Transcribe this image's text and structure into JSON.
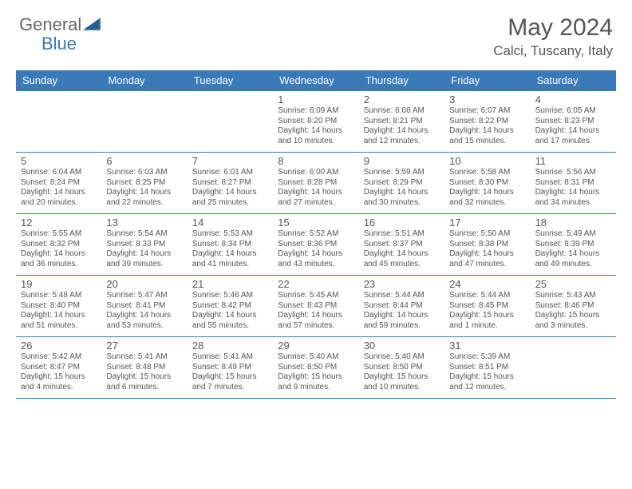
{
  "brand": {
    "general": "General",
    "blue": "Blue"
  },
  "title": {
    "main": "May 2024",
    "sub": "Calci, Tuscany, Italy"
  },
  "colors": {
    "header_bg": "#3a7ab8",
    "text": "#555555",
    "border": "#3a7ab8",
    "page_bg": "#ffffff"
  },
  "days_of_week": [
    "Sunday",
    "Monday",
    "Tuesday",
    "Wednesday",
    "Thursday",
    "Friday",
    "Saturday"
  ],
  "weeks": [
    [
      {
        "day": null
      },
      {
        "day": null
      },
      {
        "day": null
      },
      {
        "day": "1",
        "sunrise": "Sunrise: 6:09 AM",
        "sunset": "Sunset: 8:20 PM",
        "daylight": "Daylight: 14 hours and 10 minutes."
      },
      {
        "day": "2",
        "sunrise": "Sunrise: 6:08 AM",
        "sunset": "Sunset: 8:21 PM",
        "daylight": "Daylight: 14 hours and 12 minutes."
      },
      {
        "day": "3",
        "sunrise": "Sunrise: 6:07 AM",
        "sunset": "Sunset: 8:22 PM",
        "daylight": "Daylight: 14 hours and 15 minutes."
      },
      {
        "day": "4",
        "sunrise": "Sunrise: 6:05 AM",
        "sunset": "Sunset: 8:23 PM",
        "daylight": "Daylight: 14 hours and 17 minutes."
      }
    ],
    [
      {
        "day": "5",
        "sunrise": "Sunrise: 6:04 AM",
        "sunset": "Sunset: 8:24 PM",
        "daylight": "Daylight: 14 hours and 20 minutes."
      },
      {
        "day": "6",
        "sunrise": "Sunrise: 6:03 AM",
        "sunset": "Sunset: 8:25 PM",
        "daylight": "Daylight: 14 hours and 22 minutes."
      },
      {
        "day": "7",
        "sunrise": "Sunrise: 6:01 AM",
        "sunset": "Sunset: 8:27 PM",
        "daylight": "Daylight: 14 hours and 25 minutes."
      },
      {
        "day": "8",
        "sunrise": "Sunrise: 6:00 AM",
        "sunset": "Sunset: 8:28 PM",
        "daylight": "Daylight: 14 hours and 27 minutes."
      },
      {
        "day": "9",
        "sunrise": "Sunrise: 5:59 AM",
        "sunset": "Sunset: 8:29 PM",
        "daylight": "Daylight: 14 hours and 30 minutes."
      },
      {
        "day": "10",
        "sunrise": "Sunrise: 5:58 AM",
        "sunset": "Sunset: 8:30 PM",
        "daylight": "Daylight: 14 hours and 32 minutes."
      },
      {
        "day": "11",
        "sunrise": "Sunrise: 5:56 AM",
        "sunset": "Sunset: 8:31 PM",
        "daylight": "Daylight: 14 hours and 34 minutes."
      }
    ],
    [
      {
        "day": "12",
        "sunrise": "Sunrise: 5:55 AM",
        "sunset": "Sunset: 8:32 PM",
        "daylight": "Daylight: 14 hours and 36 minutes."
      },
      {
        "day": "13",
        "sunrise": "Sunrise: 5:54 AM",
        "sunset": "Sunset: 8:33 PM",
        "daylight": "Daylight: 14 hours and 39 minutes."
      },
      {
        "day": "14",
        "sunrise": "Sunrise: 5:53 AM",
        "sunset": "Sunset: 8:34 PM",
        "daylight": "Daylight: 14 hours and 41 minutes."
      },
      {
        "day": "15",
        "sunrise": "Sunrise: 5:52 AM",
        "sunset": "Sunset: 8:36 PM",
        "daylight": "Daylight: 14 hours and 43 minutes."
      },
      {
        "day": "16",
        "sunrise": "Sunrise: 5:51 AM",
        "sunset": "Sunset: 8:37 PM",
        "daylight": "Daylight: 14 hours and 45 minutes."
      },
      {
        "day": "17",
        "sunrise": "Sunrise: 5:50 AM",
        "sunset": "Sunset: 8:38 PM",
        "daylight": "Daylight: 14 hours and 47 minutes."
      },
      {
        "day": "18",
        "sunrise": "Sunrise: 5:49 AM",
        "sunset": "Sunset: 8:39 PM",
        "daylight": "Daylight: 14 hours and 49 minutes."
      }
    ],
    [
      {
        "day": "19",
        "sunrise": "Sunrise: 5:48 AM",
        "sunset": "Sunset: 8:40 PM",
        "daylight": "Daylight: 14 hours and 51 minutes."
      },
      {
        "day": "20",
        "sunrise": "Sunrise: 5:47 AM",
        "sunset": "Sunset: 8:41 PM",
        "daylight": "Daylight: 14 hours and 53 minutes."
      },
      {
        "day": "21",
        "sunrise": "Sunrise: 5:46 AM",
        "sunset": "Sunset: 8:42 PM",
        "daylight": "Daylight: 14 hours and 55 minutes."
      },
      {
        "day": "22",
        "sunrise": "Sunrise: 5:45 AM",
        "sunset": "Sunset: 8:43 PM",
        "daylight": "Daylight: 14 hours and 57 minutes."
      },
      {
        "day": "23",
        "sunrise": "Sunrise: 5:44 AM",
        "sunset": "Sunset: 8:44 PM",
        "daylight": "Daylight: 14 hours and 59 minutes."
      },
      {
        "day": "24",
        "sunrise": "Sunrise: 5:44 AM",
        "sunset": "Sunset: 8:45 PM",
        "daylight": "Daylight: 15 hours and 1 minute."
      },
      {
        "day": "25",
        "sunrise": "Sunrise: 5:43 AM",
        "sunset": "Sunset: 8:46 PM",
        "daylight": "Daylight: 15 hours and 3 minutes."
      }
    ],
    [
      {
        "day": "26",
        "sunrise": "Sunrise: 5:42 AM",
        "sunset": "Sunset: 8:47 PM",
        "daylight": "Daylight: 15 hours and 4 minutes."
      },
      {
        "day": "27",
        "sunrise": "Sunrise: 5:41 AM",
        "sunset": "Sunset: 8:48 PM",
        "daylight": "Daylight: 15 hours and 6 minutes."
      },
      {
        "day": "28",
        "sunrise": "Sunrise: 5:41 AM",
        "sunset": "Sunset: 8:49 PM",
        "daylight": "Daylight: 15 hours and 7 minutes."
      },
      {
        "day": "29",
        "sunrise": "Sunrise: 5:40 AM",
        "sunset": "Sunset: 8:50 PM",
        "daylight": "Daylight: 15 hours and 9 minutes."
      },
      {
        "day": "30",
        "sunrise": "Sunrise: 5:40 AM",
        "sunset": "Sunset: 8:50 PM",
        "daylight": "Daylight: 15 hours and 10 minutes."
      },
      {
        "day": "31",
        "sunrise": "Sunrise: 5:39 AM",
        "sunset": "Sunset: 8:51 PM",
        "daylight": "Daylight: 15 hours and 12 minutes."
      },
      {
        "day": null
      }
    ]
  ]
}
